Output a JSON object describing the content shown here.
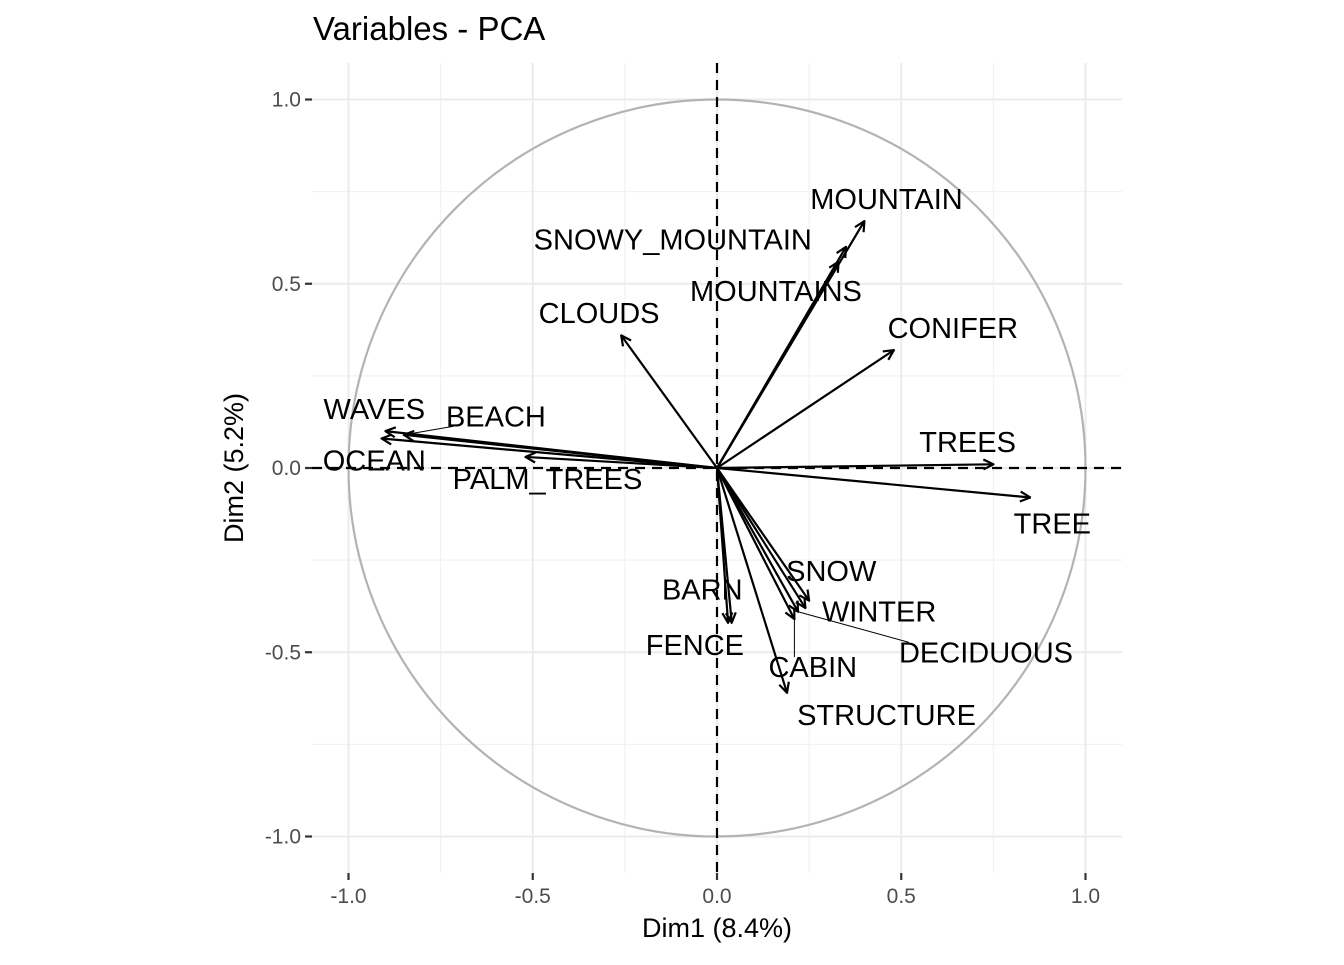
{
  "chart_data": {
    "type": "scatter",
    "subtype": "pca-variable-correlation-circle",
    "title": "Variables - PCA",
    "xlabel": "Dim1 (8.4%)",
    "ylabel": "Dim2 (5.2%)",
    "xlim": [
      -1.1,
      1.1
    ],
    "ylim": [
      -1.1,
      1.1
    ],
    "x_ticks": [
      -1.0,
      -0.5,
      0.0,
      0.5,
      1.0
    ],
    "y_ticks": [
      -1.0,
      -0.5,
      0.0,
      0.5,
      1.0
    ],
    "x_tick_labels": [
      "-1.0",
      "-0.5",
      "0.0",
      "0.5",
      "1.0"
    ],
    "y_tick_labels": [
      "-1.0",
      "-0.5",
      "0.0",
      "0.5",
      "1.0"
    ],
    "grid": true,
    "unit_circle": true,
    "reference_lines": "dashed at x=0 and y=0",
    "variables": [
      {
        "name": "MOUNTAIN",
        "x": 0.4,
        "y": 0.67,
        "label_x": 0.46,
        "label_y": 0.73
      },
      {
        "name": "SNOWY_MOUNTAIN",
        "x": 0.35,
        "y": 0.6,
        "label_x": -0.12,
        "label_y": 0.62
      },
      {
        "name": "MOUNTAINS",
        "x": 0.33,
        "y": 0.56,
        "label_x": 0.16,
        "label_y": 0.48
      },
      {
        "name": "CONIFER",
        "x": 0.48,
        "y": 0.32,
        "label_x": 0.64,
        "label_y": 0.38
      },
      {
        "name": "CLOUDS",
        "x": -0.26,
        "y": 0.36,
        "label_x": -0.32,
        "label_y": 0.42
      },
      {
        "name": "WAVES",
        "x": -0.9,
        "y": 0.1,
        "label_x": -0.93,
        "label_y": 0.16,
        "leader": false
      },
      {
        "name": "BEACH",
        "x": -0.85,
        "y": 0.09,
        "label_x": -0.6,
        "label_y": 0.14,
        "leader": true
      },
      {
        "name": "OCEAN",
        "x": -0.91,
        "y": 0.08,
        "label_x": -0.93,
        "label_y": 0.02,
        "leader": false
      },
      {
        "name": "PALM_TREES",
        "x": -0.52,
        "y": 0.03,
        "label_x": -0.46,
        "label_y": -0.03
      },
      {
        "name": "TREES",
        "x": 0.75,
        "y": 0.01,
        "label_x": 0.68,
        "label_y": 0.07
      },
      {
        "name": "TREE",
        "x": 0.85,
        "y": -0.08,
        "label_x": 0.91,
        "label_y": -0.15
      },
      {
        "name": "SNOW",
        "x": 0.25,
        "y": -0.36,
        "label_x": 0.31,
        "label_y": -0.28
      },
      {
        "name": "WINTER",
        "x": 0.24,
        "y": -0.38,
        "label_x": 0.44,
        "label_y": -0.39,
        "leader": false
      },
      {
        "name": "DECIDUOUS",
        "x": 0.22,
        "y": -0.39,
        "label_x": 0.73,
        "label_y": -0.5,
        "leader": true
      },
      {
        "name": "BARN",
        "x": 0.04,
        "y": -0.42,
        "label_x": -0.04,
        "label_y": -0.33
      },
      {
        "name": "FENCE",
        "x": 0.03,
        "y": -0.42,
        "label_x": -0.06,
        "label_y": -0.48
      },
      {
        "name": "CABIN",
        "x": 0.21,
        "y": -0.41,
        "label_x": 0.26,
        "label_y": -0.54,
        "leader": true
      },
      {
        "name": "STRUCTURE",
        "x": 0.19,
        "y": -0.61,
        "label_x": 0.46,
        "label_y": -0.67
      }
    ]
  }
}
